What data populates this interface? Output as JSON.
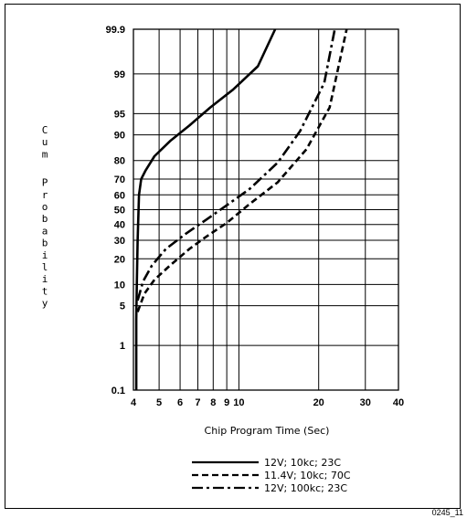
{
  "figure_id": "0245_11",
  "chart_data": {
    "type": "line",
    "xlabel": "Chip Program Time (Sec)",
    "ylabel": "Cum Probability",
    "x_scale": "log",
    "y_scale": "normal-probability",
    "xlim": [
      4,
      40
    ],
    "ylim": [
      0.1,
      99.9
    ],
    "x_ticks": [
      {
        "value": 4,
        "label": "4"
      },
      {
        "value": 5,
        "label": "5"
      },
      {
        "value": 6,
        "label": "6"
      },
      {
        "value": 7,
        "label": "7"
      },
      {
        "value": 8,
        "label": "8"
      },
      {
        "value": 9,
        "label": "9"
      },
      {
        "value": 10,
        "label": "10"
      },
      {
        "value": 20,
        "label": "20"
      },
      {
        "value": 30,
        "label": "30"
      },
      {
        "value": 40,
        "label": "40"
      }
    ],
    "y_ticks": [
      {
        "value": 0.1,
        "label": "0.1"
      },
      {
        "value": 1,
        "label": "1"
      },
      {
        "value": 5,
        "label": "5"
      },
      {
        "value": 10,
        "label": "10"
      },
      {
        "value": 20,
        "label": "20"
      },
      {
        "value": 30,
        "label": "30"
      },
      {
        "value": 40,
        "label": "40"
      },
      {
        "value": 50,
        "label": "50"
      },
      {
        "value": 60,
        "label": "60"
      },
      {
        "value": 70,
        "label": "70"
      },
      {
        "value": 80,
        "label": "80"
      },
      {
        "value": 90,
        "label": "90"
      },
      {
        "value": 95,
        "label": "95"
      },
      {
        "value": 99,
        "label": "99"
      },
      {
        "value": 99.9,
        "label": "99.9"
      }
    ],
    "grid": true,
    "legend_position": "bottom",
    "series": [
      {
        "name": "12V; 10kc; 23C",
        "style": "solid",
        "points": [
          [
            4.1,
            0.1
          ],
          [
            4.1,
            3
          ],
          [
            4.12,
            10
          ],
          [
            4.15,
            30
          ],
          [
            4.2,
            60
          ],
          [
            4.28,
            70
          ],
          [
            4.45,
            75
          ],
          [
            4.8,
            82
          ],
          [
            5.5,
            88
          ],
          [
            6.5,
            92.5
          ],
          [
            7.8,
            96
          ],
          [
            9.5,
            98
          ],
          [
            11.8,
            99.3
          ],
          [
            13.7,
            99.9
          ]
        ]
      },
      {
        "name": "11.4V; 10kc; 70C",
        "style": "dashed",
        "points": [
          [
            4.15,
            4
          ],
          [
            4.4,
            7.5
          ],
          [
            4.8,
            11.5
          ],
          [
            5.5,
            17
          ],
          [
            6.5,
            25
          ],
          [
            7.5,
            32
          ],
          [
            9,
            41
          ],
          [
            11,
            54
          ],
          [
            14,
            68
          ],
          [
            18,
            85
          ],
          [
            22,
            96
          ],
          [
            25.5,
            99.9
          ]
        ]
      },
      {
        "name": "12V; 100kc; 23C",
        "style": "dash-dot",
        "points": [
          [
            4.15,
            6
          ],
          [
            4.35,
            11
          ],
          [
            4.7,
            17
          ],
          [
            5.3,
            25
          ],
          [
            6.3,
            34
          ],
          [
            7.5,
            43
          ],
          [
            9,
            53
          ],
          [
            11,
            64
          ],
          [
            14,
            79
          ],
          [
            17,
            91
          ],
          [
            21,
            98.5
          ],
          [
            23,
            99.9
          ]
        ]
      }
    ]
  }
}
